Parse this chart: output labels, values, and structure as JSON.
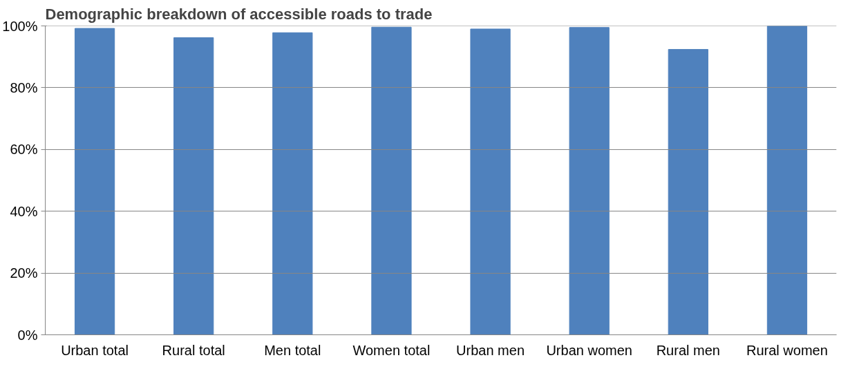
{
  "chart_data": {
    "type": "bar",
    "title": "Demographic breakdown of accessible roads to trade",
    "categories": [
      "Urban total",
      "Rural total",
      "Men total",
      "Women total",
      "Urban men",
      "Urban women",
      "Rural men",
      "Rural women"
    ],
    "series": [
      {
        "color": "#4f81bd",
        "values": [
          99.2,
          96.2,
          97.8,
          99.6,
          99.0,
          99.5,
          92.4,
          100
        ]
      }
    ],
    "ylim": [
      0,
      100
    ],
    "yticks": [
      {
        "value": 0,
        "label": "0%"
      },
      {
        "value": 20,
        "label": "20%"
      },
      {
        "value": 40,
        "label": "40%"
      },
      {
        "value": 60,
        "label": "60%"
      },
      {
        "value": 80,
        "label": "80%"
      },
      {
        "value": 100,
        "label": "100%"
      }
    ],
    "grid": "y"
  }
}
